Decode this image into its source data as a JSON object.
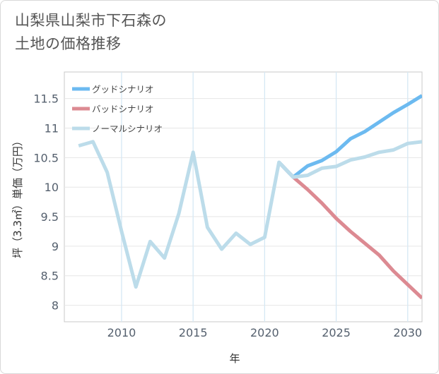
{
  "title_line1": "山梨県山梨市下石森の",
  "title_line2": "土地の価格推移",
  "chart_data": {
    "type": "line",
    "title": "山梨県山梨市下石森の土地の価格推移",
    "xlabel": "年",
    "ylabel": "坪（3.3㎡）単価（万円）",
    "xlim": [
      2006,
      2031
    ],
    "ylim": [
      7.72,
      11.95
    ],
    "x_ticks": [
      2010,
      2015,
      2020,
      2025,
      2030
    ],
    "y_ticks": [
      8,
      8.5,
      9,
      9.5,
      10,
      10.5,
      11,
      11.5
    ],
    "x_tick_labels": [
      "2010",
      "2015",
      "2020",
      "2025",
      "2030"
    ],
    "y_tick_labels": [
      "8",
      "8.5",
      "9",
      "9.5",
      "10",
      "10.5",
      "11",
      "11.5"
    ],
    "legend_position": "top-left",
    "series": [
      {
        "name": "グッドシナリオ",
        "color": "#6cbaf0",
        "x": [
          2021,
          2022,
          2023,
          2024,
          2025,
          2026,
          2027,
          2028,
          2029,
          2030,
          2031
        ],
        "values": [
          10.42,
          10.17,
          10.36,
          10.45,
          10.6,
          10.82,
          10.94,
          11.1,
          11.26,
          11.4,
          11.55
        ]
      },
      {
        "name": "バッドシナリオ",
        "color": "#dc8a92",
        "x": [
          2021,
          2022,
          2023,
          2024,
          2025,
          2026,
          2027,
          2028,
          2029,
          2030,
          2031
        ],
        "values": [
          10.42,
          10.17,
          9.96,
          9.73,
          9.47,
          9.25,
          9.05,
          8.85,
          8.58,
          8.35,
          8.12
        ]
      },
      {
        "name": "ノーマルシナリオ",
        "color": "#bcdcea",
        "x": [
          2007,
          2008,
          2009,
          2010,
          2011,
          2012,
          2013,
          2014,
          2015,
          2016,
          2017,
          2018,
          2019,
          2020,
          2021,
          2022,
          2023,
          2024,
          2025,
          2026,
          2027,
          2028,
          2029,
          2030,
          2031
        ],
        "values": [
          10.7,
          10.77,
          10.25,
          9.25,
          8.31,
          9.08,
          8.8,
          9.55,
          10.59,
          9.32,
          8.95,
          9.22,
          9.03,
          9.15,
          10.42,
          10.17,
          10.2,
          10.32,
          10.35,
          10.46,
          10.51,
          10.59,
          10.63,
          10.74,
          10.77
        ]
      }
    ]
  }
}
